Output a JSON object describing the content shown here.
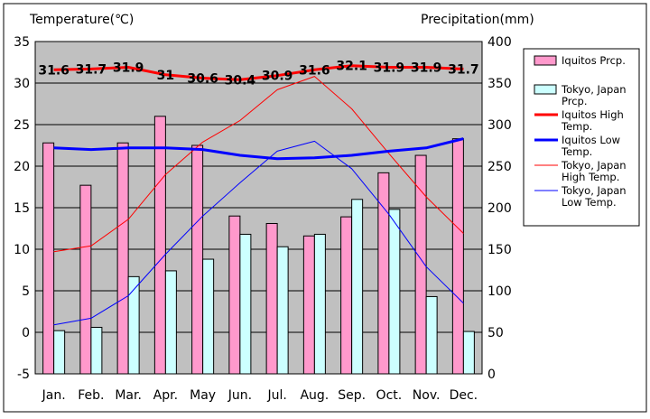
{
  "chart_data": {
    "type": "bar",
    "left_axis_label": "Temperature(℃)",
    "right_axis_label": "Precipitation(mm)",
    "categories": [
      "Jan.",
      "Feb.",
      "Mar.",
      "Apr.",
      "May",
      "Jun.",
      "Jul.",
      "Aug.",
      "Sep.",
      "Oct.",
      "Nov.",
      "Dec."
    ],
    "y_left": {
      "min": -5,
      "max": 35,
      "ticks": [
        -5,
        0,
        5,
        10,
        15,
        20,
        25,
        30,
        35
      ]
    },
    "y_right": {
      "min": 0,
      "max": 400,
      "ticks": [
        0,
        50,
        100,
        150,
        200,
        250,
        300,
        350,
        400
      ]
    },
    "grid": true,
    "legend_position": "right",
    "bar_series": [
      {
        "name": "Iquitos Prcp.",
        "legend_lines": [
          "Iquitos Prcp."
        ],
        "fill": "#ff99cc",
        "axis": "right",
        "values": [
          278,
          227,
          278,
          310,
          275,
          190,
          181,
          166,
          189,
          242,
          263,
          283
        ]
      },
      {
        "name": "Tokyo, Japan Prcp.",
        "legend_lines": [
          "Tokyo, Japan",
          "Prcp."
        ],
        "fill": "#ccffff",
        "axis": "right",
        "values": [
          52,
          56,
          117,
          124,
          138,
          168,
          153,
          168,
          210,
          198,
          93,
          51
        ]
      }
    ],
    "line_series": [
      {
        "name": "Iquitos High Temp.",
        "legend_lines": [
          "Iquitos High",
          "Temp."
        ],
        "color": "#ff0000",
        "width": 3,
        "axis": "left",
        "values": [
          31.6,
          31.7,
          31.9,
          31.0,
          30.6,
          30.4,
          30.9,
          31.6,
          32.1,
          31.9,
          31.9,
          31.7
        ],
        "labels": [
          "31.6",
          "31.7",
          "31.9",
          "31",
          "30.6",
          "30.4",
          "30.9",
          "31.6",
          "32.1",
          "31.9",
          "31.9",
          "31.7"
        ]
      },
      {
        "name": "Iquitos Low Temp.",
        "legend_lines": [
          "Iquitos Low",
          "Temp."
        ],
        "color": "#0000ff",
        "width": 3,
        "axis": "left",
        "values": [
          22.2,
          22.0,
          22.2,
          22.2,
          22.0,
          21.3,
          20.9,
          21.0,
          21.3,
          21.8,
          22.2,
          23.3
        ]
      },
      {
        "name": "Tokyo, Japan High Temp.",
        "legend_lines": [
          "Tokyo, Japan",
          "High Temp."
        ],
        "color": "#ff0000",
        "width": 1,
        "axis": "left",
        "values": [
          9.7,
          10.4,
          13.6,
          19.0,
          22.9,
          25.5,
          29.2,
          30.8,
          26.9,
          21.5,
          16.3,
          11.9
        ]
      },
      {
        "name": "Tokyo, Japan Low Temp.",
        "legend_lines": [
          "Tokyo, Japan",
          "Low Temp."
        ],
        "color": "#0000ff",
        "width": 1,
        "axis": "left",
        "values": [
          0.9,
          1.7,
          4.4,
          9.4,
          14.0,
          18.0,
          21.8,
          23.0,
          19.7,
          14.2,
          7.9,
          3.5
        ]
      }
    ]
  }
}
